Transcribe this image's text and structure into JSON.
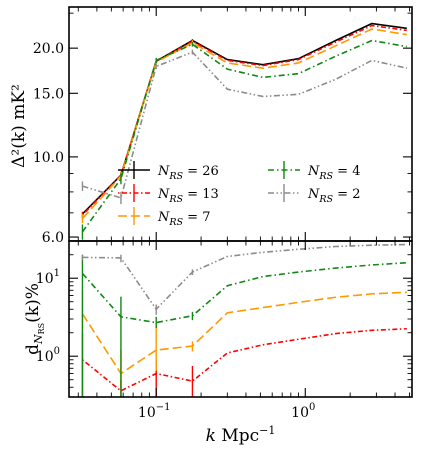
{
  "chart_data": [
    {
      "type": "line",
      "panel": "top",
      "xscale": "log",
      "yscale": "log",
      "xlim": [
        0.026,
        5.2
      ],
      "ylim": [
        5.85,
        26.0
      ],
      "ylabel": "Δ²(k) mK²",
      "yticks": [
        6.0,
        10.0,
        15.0,
        20.0
      ],
      "ytick_labels": [
        "6.0",
        "10.0",
        "15.0",
        "20.0"
      ],
      "x": [
        0.032,
        0.058,
        0.1,
        0.175,
        0.3,
        0.52,
        0.9,
        1.6,
        2.8,
        4.8
      ],
      "legend_position": "lower-center",
      "legend_columns": 2,
      "series": [
        {
          "name": "N_RS = 26",
          "name_base": "N",
          "name_sub": "RS",
          "name_val": "= 26",
          "color": "#000000",
          "dash": "",
          "values": [
            6.95,
            8.9,
            18.4,
            21.0,
            18.6,
            18.0,
            18.7,
            21.0,
            23.4,
            22.7
          ],
          "err_values": []
        },
        {
          "name": "N_RS = 13",
          "name_base": "N",
          "name_sub": "RS",
          "name_val": "= 13",
          "color": "#ff0000",
          "dash": "1.5 2.5 5 2.5",
          "values": [
            6.9,
            8.9,
            18.4,
            20.9,
            18.5,
            17.9,
            18.6,
            20.8,
            23.1,
            22.4
          ],
          "err_values": [
            0.15,
            0.2,
            0.3,
            0.3,
            0,
            0,
            0,
            0,
            0,
            0
          ]
        },
        {
          "name": "N_RS = 7",
          "name_base": "N",
          "name_sub": "RS",
          "name_val": "= 7",
          "color": "#ff9900",
          "dash": "9 4",
          "values": [
            6.75,
            8.85,
            18.3,
            20.7,
            18.2,
            17.6,
            18.2,
            20.3,
            22.6,
            21.8
          ],
          "err_values": [
            0.2,
            0.25,
            0.35,
            0.35,
            0,
            0,
            0,
            0,
            0,
            0
          ]
        },
        {
          "name": "N_RS = 4",
          "name_base": "N",
          "name_sub": "RS",
          "name_val": "= 4",
          "color": "#118811",
          "dash": "6 3 1.5 3",
          "values": [
            6.2,
            8.7,
            18.5,
            20.5,
            17.5,
            16.6,
            17.0,
            19.0,
            21.0,
            20.2
          ],
          "err_values": [
            0.3,
            0.3,
            0.3,
            0.3,
            0,
            0,
            0,
            0,
            0,
            0
          ]
        },
        {
          "name": "N_RS = 2",
          "name_base": "N",
          "name_sub": "RS",
          "name_val": "= 2",
          "color": "#8c8c8c",
          "dash": "6 2.5 1.5 2.5 1.5 2.5",
          "values": [
            8.3,
            7.7,
            17.8,
            19.5,
            15.4,
            14.7,
            14.9,
            16.4,
            18.5,
            17.6
          ],
          "err_values": [
            0.25,
            0.3,
            0.3,
            0.3,
            0,
            0,
            0,
            0,
            0,
            0
          ]
        }
      ]
    },
    {
      "type": "line",
      "panel": "bottom",
      "xscale": "log",
      "yscale": "log",
      "xlim": [
        0.026,
        5.2
      ],
      "ylim": [
        0.3,
        30.0
      ],
      "xlabel": "k Mpc⁻¹",
      "xlabel_base": "k",
      "xlabel_unit": "Mpc",
      "xlabel_exp": "−1",
      "ylabel": "d_NRS(k)%",
      "ylabel_base": "d",
      "ylabel_sub": "N",
      "ylabel_subsub": "RS",
      "ylabel_rest": "(k)%",
      "xticks": [
        0.1,
        1.0
      ],
      "xtick_labels": [
        "10⁻¹",
        "10⁰"
      ],
      "xtick_base": "10",
      "xtick_exps": [
        "−1",
        "0"
      ],
      "yticks": [
        1,
        10
      ],
      "ytick_labels": [
        "10⁰",
        "10¹"
      ],
      "ytick_base": "10",
      "ytick_exps": [
        "0",
        "1"
      ],
      "x": [
        0.032,
        0.058,
        0.1,
        0.175,
        0.3,
        0.52,
        0.9,
        1.6,
        2.8,
        4.8
      ],
      "series": [
        {
          "name": "N_RS = 13",
          "color": "#ff0000",
          "dash": "1.5 2.5 5 2.5",
          "values": [
            0.9,
            0.36,
            0.6,
            0.48,
            1.1,
            1.4,
            1.65,
            1.95,
            2.15,
            2.25
          ],
          "err_low": [
            0.2,
            0.2,
            0.2,
            0.2,
            0,
            0,
            0,
            0,
            0,
            0
          ],
          "err_high": [
            2.0,
            0.5,
            0.9,
            0.75,
            0,
            0,
            0,
            0,
            0,
            0
          ]
        },
        {
          "name": "N_RS = 7",
          "color": "#ff9900",
          "dash": "9 4",
          "values": [
            3.5,
            0.6,
            1.2,
            1.35,
            3.6,
            4.2,
            4.9,
            5.7,
            6.3,
            6.6
          ],
          "err_low": [
            0.2,
            0.35,
            0.65,
            1.15,
            0,
            0,
            0,
            0,
            0,
            0
          ],
          "err_high": [
            7.0,
            1.2,
            2.6,
            1.55,
            0,
            0,
            0,
            0,
            0,
            0
          ]
        },
        {
          "name": "N_RS = 4",
          "color": "#118811",
          "dash": "6 3 1.5 3",
          "values": [
            11.5,
            3.2,
            2.7,
            3.3,
            8.0,
            10.5,
            12.0,
            13.5,
            14.8,
            15.8
          ],
          "err_low": [
            0.2,
            0.3,
            2.3,
            2.9,
            0,
            0,
            0,
            0,
            0,
            0
          ],
          "err_high": [
            20.0,
            5.8,
            3.2,
            3.7,
            0,
            0,
            0,
            0,
            0,
            0
          ]
        },
        {
          "name": "N_RS = 2",
          "color": "#8c8c8c",
          "dash": "6 2.5 1.5 2.5 1.5 2.5",
          "values": [
            18.5,
            18.2,
            4.0,
            12.0,
            19.0,
            21.5,
            23.5,
            25.5,
            26.5,
            27.0
          ],
          "err_low": [
            17.0,
            16.0,
            3.4,
            11.0,
            0,
            0,
            0,
            0,
            0,
            0
          ],
          "err_high": [
            20.0,
            20.0,
            4.6,
            13.0,
            0,
            0,
            0,
            0,
            0,
            0
          ]
        }
      ]
    }
  ]
}
